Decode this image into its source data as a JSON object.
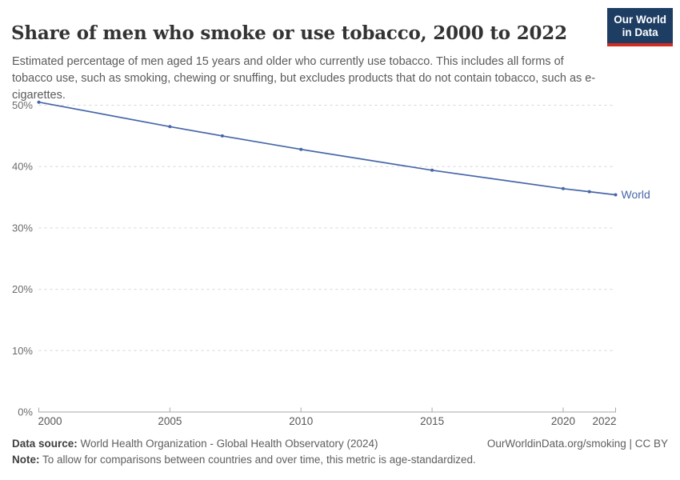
{
  "header": {
    "title": "Share of men who smoke or use tobacco, 2000 to 2022",
    "subtitle": "Estimated percentage of men aged 15 years and older who currently use tobacco. This includes all forms of tobacco use, such as smoking, chewing or snuffing, but excludes products that do not contain tobacco, such as e-cigarettes.",
    "logo": {
      "line1": "Our World",
      "line2": "in Data"
    }
  },
  "chart_data": {
    "type": "line",
    "title": "Share of men who smoke or use tobacco, 2000 to 2022",
    "xlabel": "",
    "ylabel": "",
    "x_ticks": [
      2000,
      2005,
      2010,
      2015,
      2020,
      2022
    ],
    "y_ticks": [
      0,
      10,
      20,
      30,
      40,
      50
    ],
    "y_tick_suffix": "%",
    "xlim": [
      2000,
      2022
    ],
    "ylim": [
      0,
      52
    ],
    "grid": "dashed-horizontal",
    "legend": "end-of-line-label",
    "series": [
      {
        "name": "World",
        "color": "#4766a8",
        "points": [
          [
            2000,
            50.5
          ],
          [
            2005,
            46.5
          ],
          [
            2007,
            45.0
          ],
          [
            2010,
            42.8
          ],
          [
            2015,
            39.4
          ],
          [
            2020,
            36.4
          ],
          [
            2021,
            35.9
          ],
          [
            2022,
            35.4
          ]
        ]
      }
    ],
    "colors": {
      "grid": "#d6d6d6",
      "axis": "#a9a9a9",
      "y_tick_label": "#6b6b6b",
      "x_tick_label": "#575757"
    }
  },
  "footer": {
    "datasource_label": "Data source:",
    "datasource_text": "World Health Organization - Global Health Observatory (2024)",
    "note_label": "Note:",
    "note_text": "To allow for comparisons between countries and over time, this metric is age-standardized.",
    "license": "OurWorldinData.org/smoking | CC BY"
  },
  "brand": {
    "navy": "#1d3d63",
    "red": "#d42b21"
  }
}
